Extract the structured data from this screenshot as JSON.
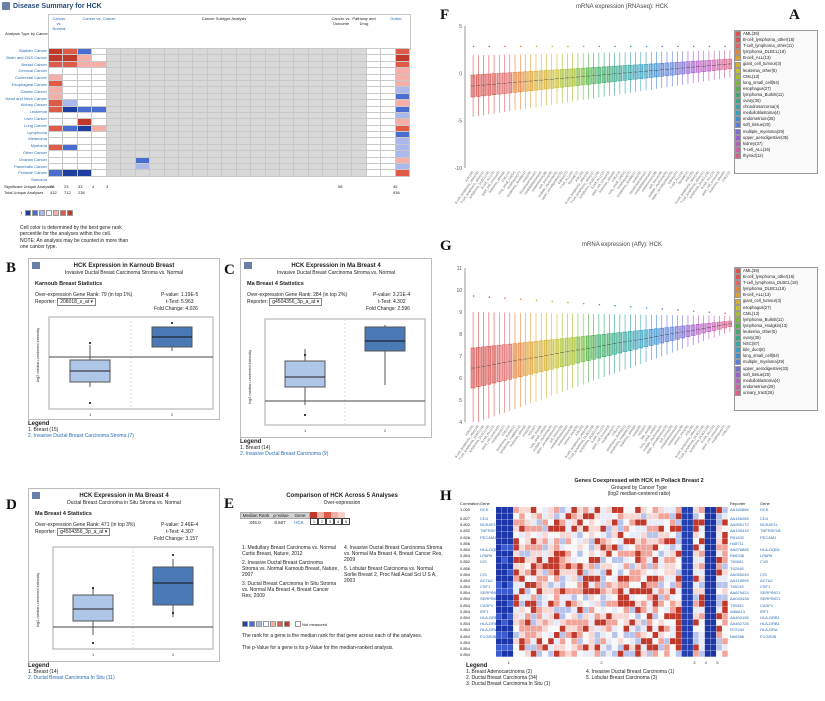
{
  "panel_letters": {
    "A": "A",
    "B": "B",
    "C": "C",
    "D": "D",
    "E": "E",
    "F": "F",
    "G": "G",
    "H": "H"
  },
  "panelA": {
    "title": "Disease Summary for HCK",
    "row_header": "Analysis Type by Cancer",
    "col_groups": [
      "Cancer vs. Normal",
      "Cancer vs. Cancer",
      "Cancer Subtype Analysis",
      "Cancer vs. Outcome",
      "Pathway and Drug",
      "Outlier"
    ],
    "sub_cols": [
      "Cancer vs. Normal",
      "Cancer vs. Cancer",
      "Multi-cancer",
      "Clinical Outcome",
      "Metastasis Event",
      "Recurrence",
      "Cell Type",
      "Pathologic Stage",
      "Pathologic Grade",
      "Survival",
      "Tumor Grade",
      "Drug Response",
      "DNA Copy Number",
      "Drug Sensitivity",
      "Outlier"
    ],
    "cancers": [
      "Bladder Cancer",
      "Brain and CNS Cancer",
      "Breast Cancer",
      "Cervical Cancer",
      "Colorectal Cancer",
      "Esophageal Cancer",
      "Gastric Cancer",
      "Head and Neck Cancer",
      "Kidney Cancer",
      "Leukemia",
      "Liver Cancer",
      "Lung Cancer",
      "Lymphoma",
      "Melanoma",
      "Myeloma",
      "Other Cancer",
      "Ovarian Cancer",
      "Pancreatic Cancer",
      "Prostate Cancer",
      "Sarcoma"
    ],
    "sig_label": "Significant Unique Analyses",
    "total_label": "Total Unique Analyses",
    "sig_values": [
      "28",
      "23",
      "33",
      "4",
      "3",
      "98",
      "45"
    ],
    "total_values": [
      "432",
      "712",
      "238",
      "",
      "",
      "",
      "936"
    ],
    "scale": [
      "1",
      "5",
      "10",
      "10",
      "5",
      "1"
    ],
    "note1": "Cell color is determined by the best gene rank percentile for the analyses within the cell.",
    "note2": "NOTE: An analysis may be counted in more than one cancer type."
  },
  "panelB": {
    "title": "HCK Expression in Karnoub Breast",
    "subtitle": "Invasive Ductal Breast Carcinoma Stroma vs. Normal",
    "stats_title": "Karnoub Breast Statistics",
    "rank_label": "Over-expression Gene Rank:",
    "rank_value": "79 (in top 1%)",
    "reporter_label": "Reporter:",
    "reporter_value": "208018_s_at",
    "pval_label": "P-value:",
    "pval": "1.19E-5",
    "t_label": "t-Test:",
    "t": "5.963",
    "fc_label": "Fold Change:",
    "fc": "4.026",
    "ylabel": "log2 median-centered intensity",
    "legend_title": "Legend",
    "legend": [
      "1. Breast (15)",
      "2. Invasive Ductal Breast Carcinoma Stroma (7)"
    ],
    "yticks": [
      "1.0",
      "0.5",
      "0.0",
      "-0.5",
      "-1.0",
      "-1.5",
      "-2.0"
    ],
    "xticks": [
      "1",
      "2"
    ]
  },
  "panelC": {
    "title": "HCK Expression in Ma Breast 4",
    "subtitle": "Invasive Ductal Breast Carcinoma Stroma vs. Normal",
    "stats_title": "Ma Breast 4 Statistics",
    "rank_label": "Over-expression Gene Rank:",
    "rank_value": "284 (in top 2%)",
    "reporter_label": "Reporter:",
    "reporter_value": "g4504356_3p_a_at",
    "pval_label": "P-value:",
    "pval": "3.21E-4",
    "t_label": "t-Test:",
    "t": "4.302",
    "fc_label": "Fold Change:",
    "fc": "2.596",
    "ylabel": "log2 median-centered intensity",
    "legend_title": "Legend",
    "legend": [
      "1. Breast (14)",
      "2. Invasive Ductal Breast Carcinoma (9)"
    ],
    "yticks": [
      "3.0",
      "2.5",
      "2.0",
      "1.5",
      "1.0",
      "0.5",
      "0.0",
      "-0.5"
    ],
    "xticks": [
      "1",
      "2"
    ]
  },
  "panelD": {
    "title": "HCK Expression in Ma Breast 4",
    "subtitle": "Ductal Breast Carcinoma in Situ Stroma vs. Normal",
    "stats_title": "Ma Breast 4 Statistics",
    "rank_label": "Over-expression Gene Rank:",
    "rank_value": "471 (in top 3%)",
    "reporter_label": "Reporter:",
    "reporter_value": "g4504356_3p_a_at",
    "pval_label": "P-value:",
    "pval": "2.46E-4",
    "t_label": "t-Test:",
    "t": "4.307",
    "fc_label": "Fold Change:",
    "fc": "3.157",
    "ylabel": "log2 median-centered intensity",
    "legend_title": "Legend",
    "legend": [
      "1. Breast (14)",
      "2. Ductal Breast Carcinoma In Situ (11)"
    ],
    "yticks": [
      "3.0",
      "2.5",
      "2.0",
      "1.5",
      "1.0",
      "0.5",
      "0.0",
      "-0.5"
    ],
    "xticks": [
      "1",
      "2"
    ]
  },
  "panelE": {
    "title": "Comparison of HCK Across 5 Analyses",
    "subtitle": "Over-expression",
    "col_median": "Median Rank",
    "col_p": "p-Value",
    "col_gene": "Gene",
    "median": "345.0",
    "p": "8.607",
    "gene": "HCK",
    "boxes": [
      "1",
      "2",
      "3",
      "4",
      "5"
    ],
    "items": [
      "1. Medullary Breast Carcinoma vs. Normal Curtis Breast, Nature, 2012",
      "2. Invasive Ductal Breast Carcinoma Stroma vs. Normal Karnoub Breast, Nature, 2007",
      "3. Ductal Breast Carcinoma In Situ Stroma vs. Normal Ma Breast 4, Breast Cancer Res, 2009",
      "4. Invasive Ductal Breast Carcinoma Stroma vs. Normal Ma Breast 4, Breast Cancer Res, 2009",
      "5. Lobular Breast Carcinoma vs. Normal Sorlie Breast 2, Proc Natl Acad Sci U S A, 2003"
    ],
    "scale": [
      "1",
      "5",
      "10",
      "10",
      "5",
      "1"
    ],
    "not_measured": "Not measured",
    "foot1": "The rank for a gene is the median rank for that gene across each of the analyses.",
    "foot2": "The p-Value for a gene is its p-Value for the median-ranked analysis."
  },
  "panelF": {
    "title": "mRNA expression (RNAseq): HCK",
    "yticks": [
      "5",
      "0",
      "-5",
      "-10"
    ],
    "legend": [
      "AML(39)",
      "B-cell_lymphoma_other(16)",
      "T-cell_lymphoma_other(11)",
      "lymphoma_DLBCL(18)",
      "B-cell_ALL(13)",
      "giant_cell_tumour(3)",
      "leukemia_other(5)",
      "CML(13)",
      "lung_small_cell(54)",
      "esophagus(27)",
      "lymphoma_Burkitt(11)",
      "ovary(35)",
      "chondrosarcoma(4)",
      "medulloblastoma(4)",
      "endometrium(28)",
      "soft_tissue(20)",
      "multiple_myeloma(29)",
      "upper_aerodigestive(35)",
      "kidney(37)",
      "T-cell_ALL(16)",
      "thyroid(12)"
    ],
    "colors": [
      "#d9534f",
      "#d9534f",
      "#e06666",
      "#e8833a",
      "#e0a030",
      "#d6b030",
      "#c8c030",
      "#a8c030",
      "#7dba3a",
      "#4fb34a",
      "#3aab6a",
      "#36a88a",
      "#35a5a5",
      "#35a0c0",
      "#3a90d0",
      "#5a7fd6",
      "#7a6fd6",
      "#9a5fd0",
      "#b95fc0",
      "#cf5fa8",
      "#d9608a"
    ]
  },
  "panelG": {
    "title": "mRNA expression (Affy): HCK",
    "yticks": [
      "11",
      "10",
      "9",
      "8",
      "7",
      "6",
      "5",
      "4"
    ],
    "legend": [
      "AML(39)",
      "B-cell_lymphoma_other(16)",
      "T-cell_lymphoma_DLBCL(18)",
      "lymphoma_DLBCL(18)",
      "B-cell_ALL(13)",
      "giant_cell_tumour(3)",
      "esophagus(27)",
      "CML(13)",
      "lymphoma_Burkitt(11)",
      "lymphoma_Hodgkin(13)",
      "leukemia_other(5)",
      "ovary(35)",
      "NSC(87)",
      "bile_duct(8)",
      "lung_small_cell(54)",
      "multiple_myeloma(29)",
      "upper_aerodigestive(33)",
      "soft_tissue(20)",
      "medulloblastoma(4)",
      "endometrium(28)",
      "urinary_tract(26)"
    ],
    "colors": [
      "#d9534f",
      "#d9534f",
      "#e06666",
      "#e8833a",
      "#e0a030",
      "#d6b030",
      "#c8c030",
      "#a8c030",
      "#7dba3a",
      "#4fb34a",
      "#3aab6a",
      "#36a88a",
      "#35a5a5",
      "#35a0c0",
      "#3a90d0",
      "#5a7fd6",
      "#7a6fd6",
      "#9a5fd0",
      "#b95fc0",
      "#cf5fa8",
      "#d9608a"
    ]
  },
  "panelH": {
    "title": "Genes Coexpressed with HCK in Pollack Breast 2",
    "subtitle1": "Grouped by Cancer Type",
    "subtitle2": "(log2 median-centered ratio)",
    "col_corr": "Correlation",
    "col_gene": "Gene",
    "col_reporter": "Reporter",
    "col_gene2": "Gene",
    "first_corr": "1.000",
    "first_gene": "HCK",
    "first_reporter": "AA160886",
    "corr": [
      "0.827",
      "0.802",
      "0.832",
      "0.826",
      "0.856",
      "0.854",
      "0.854",
      "0.852",
      "0.856",
      "0.854",
      "0.854",
      "0.854",
      "0.854",
      "0.854",
      "0.854",
      "0.854",
      "0.854",
      "0.854",
      "0.854",
      "0.854",
      "0.854",
      "0.854",
      "0.854"
    ],
    "genes": [
      "CD4",
      "NCKAP1L",
      "TNFRSF1B",
      "PECAM1",
      "",
      "HLA-DQB1",
      "LPAR6",
      "CIS",
      "",
      "CIS",
      "ACTA2",
      "CSF1",
      "SERPING1",
      "SERPING1",
      "CASP1",
      "IRF1",
      "HLA-DRB1",
      "HLA-DRB1",
      "HLA-DRA",
      "FCGR2B",
      "",
      "",
      ""
    ],
    "reporters": [
      "AA156285",
      "AA995172",
      "AA155415",
      "R51832",
      "H48711",
      "AA676885",
      "R66338",
      "T60081",
      "T62048",
      "AA055245",
      "AA416999",
      "T65139",
      "AA679424",
      "AA043438",
      "T90352",
      "W86813",
      "AA404195",
      "AA452725",
      "R72244",
      "N66386",
      "",
      "",
      ""
    ],
    "genes_right": [
      "CD4",
      "NCKAP1L",
      "TNFRSF1B",
      "PECAM1",
      "",
      "HLA-DQB1",
      "LPAR6",
      "C1R",
      "",
      "CIS",
      "ACTA2",
      "CSF1",
      "SERPING1",
      "SERPING1",
      "CASP1",
      "IRF1",
      "HLA-DRB1",
      "HLA-DRB1",
      "HLA-DRA",
      "FCGR2B",
      "",
      "",
      ""
    ],
    "xticks": [
      "1",
      "2",
      "3",
      "4",
      "5"
    ],
    "legend_title": "Legend",
    "legend": [
      "1. Breast Adenocarcinoma (2)",
      "2. Ductal Breast Carcinoma (34)",
      "3. Ductal Breast Carcinoma In Situ (1)",
      "4. Invasive Ductal Breast Carcinoma (1)",
      "5. Lobular Breast Carcinoma (3)"
    ]
  }
}
